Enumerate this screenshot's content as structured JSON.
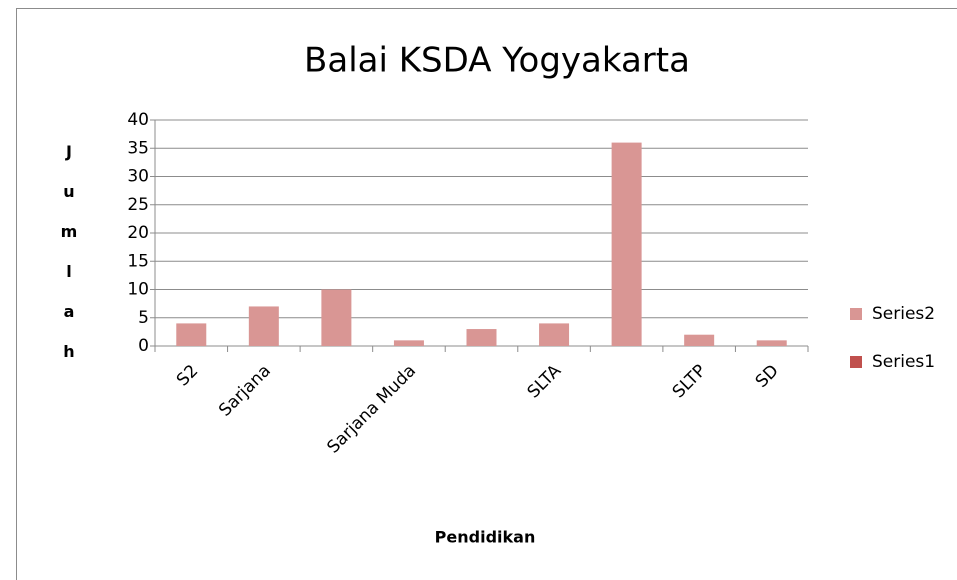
{
  "chart_data": {
    "type": "bar",
    "title": "Balai KSDA Yogyakarta",
    "x_label": "Pendidikan",
    "y_label": "Jumlah",
    "categories": [
      "S2",
      "Sarjana",
      null,
      "Sarjana Muda",
      null,
      "SLTA",
      null,
      "SLTP",
      "SD"
    ],
    "series": [
      {
        "name": "Series2",
        "color": "#d99694",
        "values": [
          4,
          7,
          10,
          1,
          3,
          4,
          36,
          2,
          1
        ]
      },
      {
        "name": "Series1",
        "color": "#c0504d",
        "values": [
          0,
          0,
          0,
          0,
          0,
          0,
          0,
          0,
          0
        ]
      }
    ],
    "stacked": true,
    "ylim": [
      0,
      40
    ],
    "yticks": [
      0,
      5,
      10,
      15,
      20,
      25,
      30,
      35,
      40
    ],
    "grid": true,
    "legend": "right"
  }
}
